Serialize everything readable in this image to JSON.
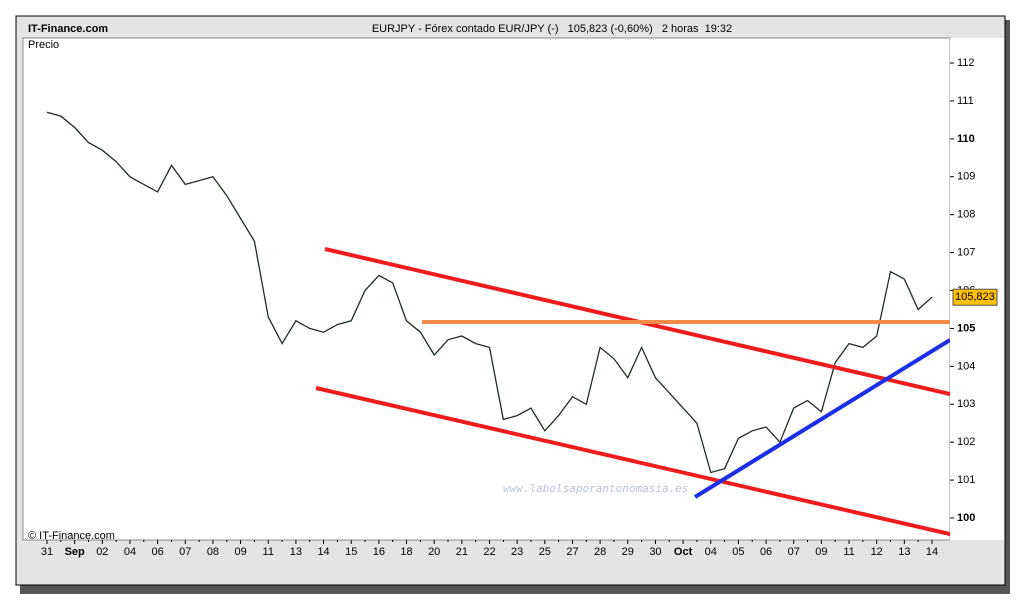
{
  "chart_data": {
    "type": "line",
    "site": "IT-Finance.com",
    "title": "EURJPY - Fórex contado EUR/JPY (-)   105,823 (-0,60%)   2 horas  19:32",
    "y_label": "Precio",
    "copyright": "© IT-Finance.com",
    "watermark": "www.labolsaporantonomasia.es",
    "last_price_label": "105,823",
    "categories": [
      "31",
      null,
      "Sep",
      null,
      "02",
      null,
      "04",
      null,
      "06",
      null,
      "07",
      null,
      "08",
      null,
      "09",
      null,
      "11",
      null,
      "13",
      null,
      "14",
      null,
      "15",
      null,
      "16",
      null,
      "18",
      null,
      "20",
      null,
      "21",
      null,
      "22",
      null,
      "23",
      null,
      "25",
      null,
      "27",
      null,
      "28",
      null,
      "29",
      null,
      "30",
      null,
      "Oct",
      null,
      "04",
      null,
      "05",
      null,
      "06",
      null,
      "07",
      null,
      "09",
      null,
      "11",
      null,
      "12",
      null,
      "13",
      null,
      "14"
    ],
    "series": [
      {
        "name": "EURJPY",
        "color": "#1f2f1f",
        "values": [
          110.7,
          110.6,
          110.3,
          109.9,
          109.7,
          109.4,
          109.0,
          108.8,
          108.6,
          109.3,
          108.8,
          108.9,
          109.0,
          108.5,
          107.9,
          107.3,
          105.3,
          104.6,
          105.2,
          105.0,
          104.9,
          105.1,
          105.2,
          106.0,
          106.4,
          106.2,
          105.2,
          104.9,
          104.3,
          104.7,
          104.8,
          104.6,
          104.5,
          102.6,
          102.7,
          102.9,
          102.3,
          102.7,
          103.2,
          103.0,
          104.5,
          104.2,
          103.7,
          104.5,
          103.7,
          103.3,
          102.9,
          102.5,
          101.2,
          101.3,
          102.1,
          102.3,
          102.4,
          102.0,
          102.9,
          103.1,
          102.8,
          104.1,
          104.6,
          104.5,
          104.8,
          106.5,
          106.3,
          105.5,
          105.823
        ]
      }
    ],
    "ylim": [
      99.42,
      112.66
    ],
    "yticks": [
      100,
      101,
      102,
      103,
      104,
      105,
      106,
      107,
      108,
      109,
      110,
      111,
      112
    ]
  }
}
